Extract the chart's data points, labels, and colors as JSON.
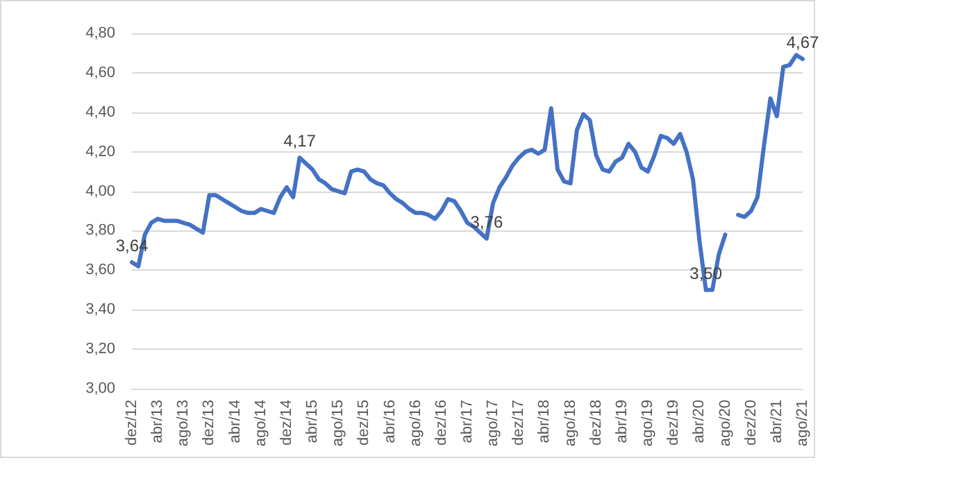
{
  "chart_data": {
    "type": "line",
    "categories": [
      "dez/12",
      null,
      null,
      null,
      "abr/13",
      null,
      null,
      null,
      "ago/13",
      null,
      null,
      null,
      "dez/13",
      null,
      null,
      null,
      "abr/14",
      null,
      null,
      null,
      "ago/14",
      null,
      null,
      null,
      "dez/14",
      null,
      null,
      null,
      "abr/15",
      null,
      null,
      null,
      "ago/15",
      null,
      null,
      null,
      "dez/15",
      null,
      null,
      null,
      "abr/16",
      null,
      null,
      null,
      "ago/16",
      null,
      null,
      null,
      "dez/16",
      null,
      null,
      null,
      "abr/17",
      null,
      null,
      null,
      "ago/17",
      null,
      null,
      null,
      "dez/17",
      null,
      null,
      null,
      "abr/18",
      null,
      null,
      null,
      "ago/18",
      null,
      null,
      null,
      "dez/18",
      null,
      null,
      null,
      "abr/19",
      null,
      null,
      null,
      "ago/19",
      null,
      null,
      null,
      "dez/19",
      null,
      null,
      null,
      "abr/20",
      null,
      null,
      null,
      "ago/20",
      null,
      null,
      null,
      "dez/20",
      null,
      null,
      null,
      "abr/21",
      null,
      null,
      null,
      "ago/21"
    ],
    "series": [
      {
        "color": "#4472c4",
        "values": [
          3.64,
          3.62,
          3.78,
          3.84,
          3.86,
          3.85,
          3.85,
          3.85,
          3.84,
          3.83,
          3.81,
          3.79,
          3.98,
          3.98,
          3.96,
          3.94,
          3.92,
          3.9,
          3.89,
          3.89,
          3.91,
          3.9,
          3.89,
          3.97,
          4.02,
          3.97,
          4.17,
          4.14,
          4.11,
          4.06,
          4.04,
          4.01,
          4.0,
          3.99,
          4.1,
          4.11,
          4.1,
          4.06,
          4.04,
          4.03,
          3.99,
          3.96,
          3.94,
          3.91,
          3.89,
          3.89,
          3.88,
          3.86,
          3.9,
          3.96,
          3.95,
          3.9,
          3.84,
          3.82,
          3.79,
          3.76,
          3.94,
          4.02,
          4.07,
          4.13,
          4.17,
          4.2,
          4.21,
          4.19,
          4.21,
          4.42,
          4.11,
          4.05,
          4.04,
          4.31,
          4.39,
          4.36,
          4.18,
          4.11,
          4.1,
          4.15,
          4.17,
          4.24,
          4.2,
          4.12,
          4.1,
          4.18,
          4.28,
          4.27,
          4.24,
          4.29,
          4.2,
          4.06,
          3.75,
          3.5,
          3.5,
          3.68,
          3.78,
          null,
          3.88,
          3.87,
          3.9,
          3.97,
          4.23,
          4.47,
          4.38,
          4.63,
          4.64,
          4.69,
          4.67
        ],
        "value_labels": [
          "3,64",
          null,
          null,
          null,
          null,
          null,
          null,
          null,
          null,
          null,
          null,
          null,
          null,
          null,
          null,
          null,
          null,
          null,
          null,
          null,
          null,
          null,
          null,
          null,
          null,
          null,
          "4,17",
          null,
          null,
          null,
          null,
          null,
          null,
          null,
          null,
          null,
          null,
          null,
          null,
          null,
          null,
          null,
          null,
          null,
          null,
          null,
          null,
          null,
          null,
          null,
          null,
          null,
          null,
          null,
          null,
          "3,76",
          null,
          null,
          null,
          null,
          null,
          null,
          null,
          null,
          null,
          null,
          null,
          null,
          null,
          null,
          null,
          null,
          null,
          null,
          null,
          null,
          null,
          null,
          null,
          null,
          null,
          null,
          null,
          null,
          null,
          null,
          null,
          null,
          null,
          "3,50",
          null,
          null,
          null,
          null,
          null,
          null,
          null,
          null,
          null,
          null,
          null,
          null,
          null,
          null,
          "4,67"
        ]
      }
    ],
    "ylim": [
      3.0,
      4.8
    ],
    "yticks": [
      {
        "value": 3.0,
        "label": "3,00"
      },
      {
        "value": 3.2,
        "label": "3,20"
      },
      {
        "value": 3.4,
        "label": "3,40"
      },
      {
        "value": 3.6,
        "label": "3,60"
      },
      {
        "value": 3.8,
        "label": "3,80"
      },
      {
        "value": 4.0,
        "label": "4,00"
      },
      {
        "value": 4.2,
        "label": "4,20"
      },
      {
        "value": 4.4,
        "label": "4,40"
      },
      {
        "value": 4.6,
        "label": "4,60"
      },
      {
        "value": 4.8,
        "label": "4,80"
      }
    ],
    "grid": "y",
    "marker": "none",
    "line_style": "solid"
  }
}
